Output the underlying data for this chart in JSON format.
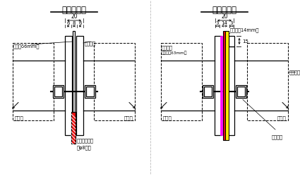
{
  "title_left": "真缝示意图",
  "title_right": "假缝示意图",
  "bg_color": "#ffffff",
  "text_gangban": "钢板（δ6mm）",
  "text_muban": "模板面板",
  "text_side_left": "侧模板",
  "text_side_right": "侧模板",
  "text_bottom1": "矩形小钢板条",
  "text_bottom2": "或φ8钢筋",
  "text_shuangmian": "双面胶带",
  "text_yasuo": "（压缩后δ3mm）",
  "text_gangbantiao": "钢板条（14mm）",
  "text_muban2": "模板面板",
  "text_luoshuan": "螺栓垫圈",
  "text_15": "15",
  "dim_L_outer": "20",
  "dim_L_mid": "8",
  "dim_L_side": "6",
  "dim_R_outer": "20",
  "dim_R_mid": "14",
  "dim_R_side": "3"
}
